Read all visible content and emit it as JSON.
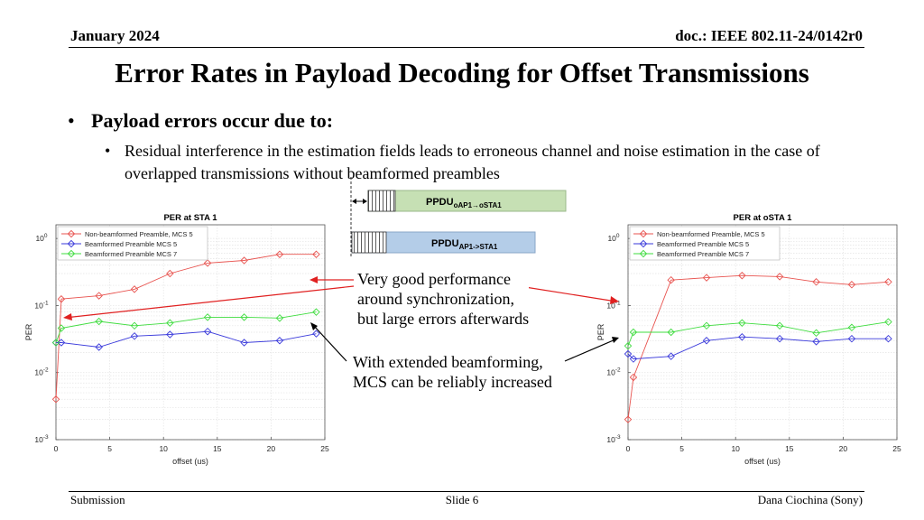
{
  "header": {
    "date": "January 2024",
    "doc": "doc.: IEEE 802.11-24/0142r0"
  },
  "title": "Error Rates in Payload Decoding for Offset Transmissions",
  "bullets": {
    "main": "Payload errors occur due to:",
    "sub": "Residual interference in the estimation fields leads to erroneous channel and noise estimation in the case of overlapped transmissions without beamformed preambles"
  },
  "ppdu": {
    "top_base": "PPDU",
    "top_sub": "oAP1→oSTA1",
    "bottom_base": "PPDU",
    "bottom_sub": "AP1->STA1"
  },
  "annotations": {
    "sync": [
      "Very good performance",
      "around synchronization,",
      "but large errors afterwards"
    ],
    "beam": [
      "With extended beamforming,",
      "MCS can be reliably increased"
    ]
  },
  "footer": {
    "left": "Submission",
    "center": "Slide 6",
    "right": "Dana Ciochina (Sony)"
  },
  "colors": {
    "red": "#e8534f",
    "blue": "#3a3adb",
    "green": "#3fdc3f",
    "ppdu_top": "#c6e0b4",
    "ppdu_bottom": "#b4cde8"
  },
  "chart_data": [
    {
      "type": "line",
      "title": "PER at STA 1",
      "xlabel": "offset (us)",
      "ylabel": "PER",
      "yscale": "log",
      "xlim": [
        0,
        25
      ],
      "ylim": [
        0.001,
        1.6
      ],
      "xticks": [
        0,
        5,
        10,
        15,
        20,
        25
      ],
      "yticks": [
        {
          "value": 0.001,
          "exp": "-3"
        },
        {
          "value": 0.01,
          "exp": "-2"
        },
        {
          "value": 0.1,
          "exp": "-1"
        },
        {
          "value": 1,
          "exp": "0"
        }
      ],
      "tick_base": "10",
      "grid": true,
      "legend_position": "top-left",
      "series": [
        {
          "name": "Non-beamformed Preamble, MCS 5",
          "color": "red",
          "x": [
            0,
            0.5,
            4,
            7.3,
            10.6,
            14.1,
            17.5,
            20.8,
            24.2
          ],
          "y": [
            0.004,
            0.125,
            0.14,
            0.175,
            0.3,
            0.43,
            0.47,
            0.58,
            0.58
          ]
        },
        {
          "name": "Beamformed Preamble MCS 5",
          "color": "blue",
          "x": [
            0,
            0.5,
            4,
            7.3,
            10.6,
            14.1,
            17.5,
            20.8,
            24.2
          ],
          "y": [
            0.028,
            0.028,
            0.024,
            0.035,
            0.037,
            0.041,
            0.028,
            0.03,
            0.038
          ]
        },
        {
          "name": "Beamformed Preamble MCS 7",
          "color": "green",
          "x": [
            0,
            0.5,
            4,
            7.3,
            10.6,
            14.1,
            17.5,
            20.8,
            24.2
          ],
          "y": [
            0.028,
            0.046,
            0.058,
            0.05,
            0.055,
            0.067,
            0.067,
            0.065,
            0.08
          ]
        }
      ]
    },
    {
      "type": "line",
      "title": "PER at oSTA 1",
      "xlabel": "offset (us)",
      "ylabel": "PER",
      "yscale": "log",
      "xlim": [
        0,
        25
      ],
      "ylim": [
        0.001,
        1.6
      ],
      "xticks": [
        0,
        5,
        10,
        15,
        20,
        25
      ],
      "yticks": [
        {
          "value": 0.001,
          "exp": "-3"
        },
        {
          "value": 0.01,
          "exp": "-2"
        },
        {
          "value": 0.1,
          "exp": "-1"
        },
        {
          "value": 1,
          "exp": "0"
        }
      ],
      "tick_base": "10",
      "grid": true,
      "legend_position": "top-left",
      "series": [
        {
          "name": "Non-beamformed Preamble, MCS 5",
          "color": "red",
          "x": [
            0,
            0.5,
            4,
            7.3,
            10.6,
            14.1,
            17.5,
            20.8,
            24.2
          ],
          "y": [
            0.002,
            0.0085,
            0.24,
            0.26,
            0.28,
            0.27,
            0.225,
            0.205,
            0.225
          ]
        },
        {
          "name": "Beamformed Preamble MCS 5",
          "color": "blue",
          "x": [
            0,
            0.5,
            4,
            7.3,
            10.6,
            14.1,
            17.5,
            20.8,
            24.2
          ],
          "y": [
            0.019,
            0.016,
            0.0175,
            0.03,
            0.034,
            0.032,
            0.029,
            0.032,
            0.032
          ]
        },
        {
          "name": "Beamformed Preamble MCS 7",
          "color": "green",
          "x": [
            0,
            0.5,
            4,
            7.3,
            10.6,
            14.1,
            17.5,
            20.8,
            24.2
          ],
          "y": [
            0.025,
            0.04,
            0.04,
            0.05,
            0.055,
            0.05,
            0.039,
            0.047,
            0.057
          ]
        }
      ]
    }
  ]
}
